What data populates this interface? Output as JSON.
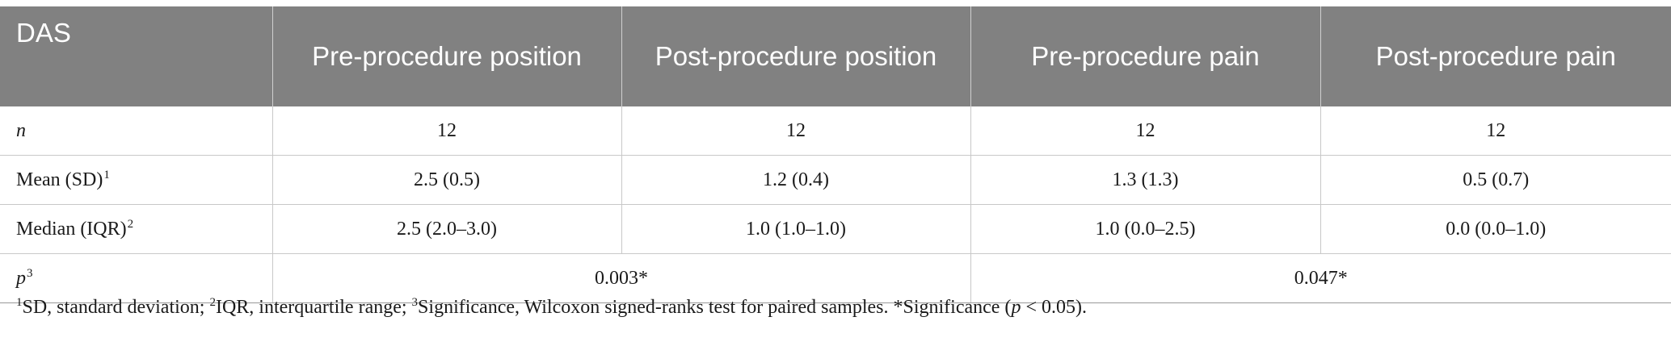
{
  "table": {
    "headers": [
      "DAS",
      "Pre-procedure position",
      "Post-procedure position",
      "Pre-procedure pain",
      "Post-procedure pain"
    ],
    "rows": {
      "n": {
        "label": "n",
        "values": [
          "12",
          "12",
          "12",
          "12"
        ]
      },
      "mean": {
        "label": "Mean (SD)",
        "sup": "1",
        "values": [
          "2.5 (0.5)",
          "1.2 (0.4)",
          "1.3 (1.3)",
          "0.5 (0.7)"
        ]
      },
      "median": {
        "label": "Median (IQR)",
        "sup": "2",
        "values": [
          "2.5 (2.0–3.0)",
          "1.0 (1.0–1.0)",
          "1.0 (0.0–2.5)",
          "0.0 (0.0–1.0)"
        ]
      },
      "p": {
        "label": "p",
        "sup": "3",
        "values": [
          "0.003*",
          "0.047*"
        ]
      }
    }
  },
  "footnote": {
    "sup1": "1",
    "text1": "SD, standard deviation; ",
    "sup2": "2",
    "text2": "IQR, interquartile range; ",
    "sup3": "3",
    "text3": "Significance, Wilcoxon signed-ranks test for paired samples. *Significance (",
    "p_symbol": "p",
    "text4": " < 0.05)."
  }
}
